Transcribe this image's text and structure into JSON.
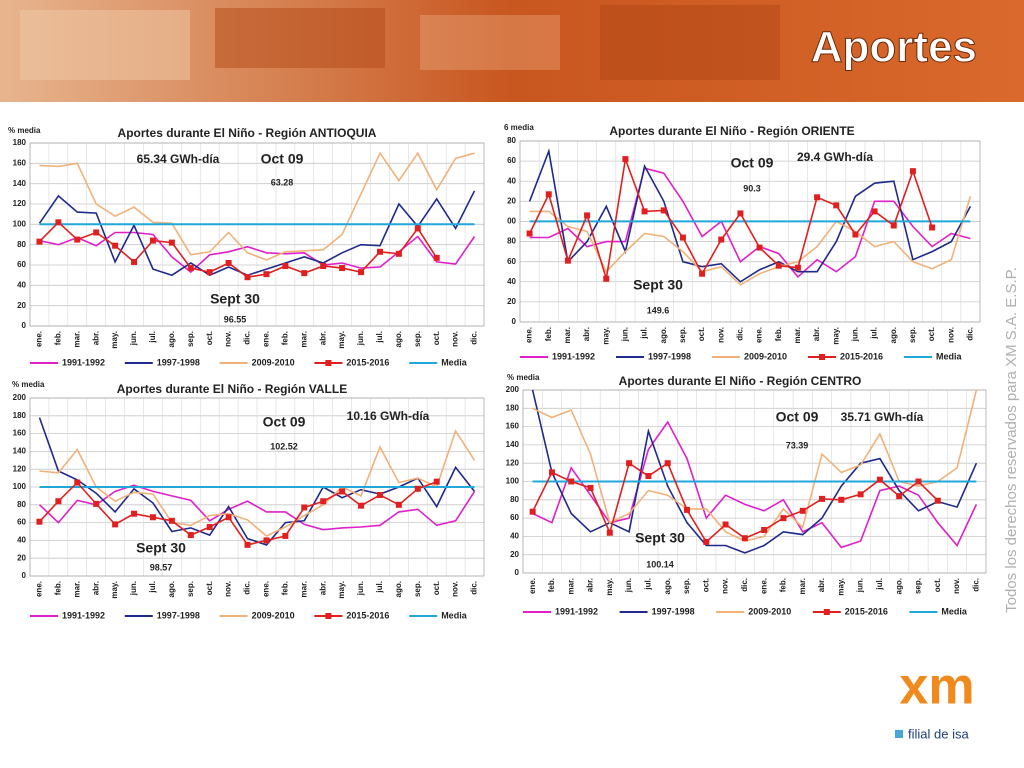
{
  "header": {
    "title": "Aportes"
  },
  "side_note": "Todos los derechos reservados para XM S.A. E.S.P.",
  "logo": {
    "mark": "xm",
    "tagline": "filial de isa"
  },
  "chart_data": [
    {
      "type": "line",
      "title": "Aportes durante El Niño - Región ANTIOQUIA",
      "y_label": "% media",
      "categories": [
        "ene.",
        "feb.",
        "mar.",
        "abr.",
        "may.",
        "jun.",
        "jul.",
        "ago.",
        "sep.",
        "oct.",
        "nov.",
        "dic.",
        "ene.",
        "feb.",
        "mar.",
        "abr.",
        "may.",
        "jun.",
        "jul.",
        "ago.",
        "sep.",
        "oct.",
        "nov.",
        "dic."
      ],
      "ylim": [
        0,
        180
      ],
      "yticks": [
        0,
        20,
        40,
        60,
        80,
        100,
        120,
        140,
        160,
        180
      ],
      "grid": true,
      "annotations": [
        "65.34 GWh-día",
        "Oct 09",
        "63.28",
        "Sept 30",
        "96.55"
      ],
      "series": [
        {
          "name": "1991-1992",
          "color": "#e020c8",
          "values": [
            84,
            80,
            87,
            79,
            92,
            92,
            90,
            68,
            53,
            70,
            73,
            78,
            72,
            71,
            72,
            60,
            62,
            57,
            58,
            73,
            88,
            63,
            61,
            88
          ]
        },
        {
          "name": "1997-1998",
          "color": "#1f2a8a",
          "values": [
            101,
            128,
            112,
            111,
            63,
            99,
            56,
            50,
            62,
            50,
            58,
            50,
            56,
            62,
            68,
            62,
            72,
            80,
            79,
            120,
            98,
            125,
            96,
            133
          ]
        },
        {
          "name": "2009-2010",
          "color": "#f0b27a",
          "values": [
            158,
            157,
            160,
            120,
            108,
            117,
            102,
            101,
            70,
            73,
            92,
            72,
            65,
            73,
            74,
            75,
            90,
            130,
            170,
            143,
            170,
            134,
            165,
            170
          ]
        },
        {
          "name": "2015-2016",
          "color": "#e02020",
          "marker": "square",
          "values": [
            83,
            102,
            85,
            92,
            79,
            63,
            84,
            82,
            57,
            53,
            62,
            48,
            51,
            59,
            52,
            59,
            57,
            53,
            73,
            71,
            96,
            67,
            null,
            null
          ]
        },
        {
          "name": "Media",
          "color": "#1fa8d9",
          "values": [
            100,
            100,
            100,
            100,
            100,
            100,
            100,
            100,
            100,
            100,
            100,
            100,
            100,
            100,
            100,
            100,
            100,
            100,
            100,
            100,
            100,
            100,
            100,
            100
          ]
        }
      ]
    },
    {
      "type": "line",
      "title": "Aportes durante El Niño - Región ORIENTE",
      "y_label": "6 media",
      "categories": [
        "ene.",
        "feb.",
        "mar.",
        "abr.",
        "may.",
        "jun.",
        "jul.",
        "ago.",
        "sep.",
        "oct.",
        "nov.",
        "dic.",
        "ene.",
        "feb.",
        "mar.",
        "abr.",
        "may.",
        "jun.",
        "jul.",
        "ago.",
        "sep.",
        "oct.",
        "nov.",
        "dic."
      ],
      "ylim": [
        0,
        180
      ],
      "yticks": [
        0,
        {
          "value": 20,
          "label": "20"
        },
        {
          "value": 40,
          "label": "40"
        },
        {
          "value": 60,
          "label": "60"
        },
        {
          "value": 80,
          "label": "80"
        },
        {
          "value": 100,
          "label": "00"
        },
        {
          "value": 120,
          "label": "20"
        },
        {
          "value": 140,
          "label": "40"
        },
        {
          "value": 160,
          "label": "60"
        },
        {
          "value": 180,
          "label": "80"
        }
      ],
      "grid": true,
      "annotations": [
        "29.4 GWh-día",
        "Oct 09",
        "90.3",
        "Sept 30",
        "149.6"
      ],
      "series": [
        {
          "name": "1991-1992",
          "color": "#e020c8",
          "values": [
            84,
            84,
            93,
            75,
            80,
            80,
            153,
            148,
            120,
            85,
            100,
            60,
            75,
            68,
            45,
            62,
            50,
            65,
            120,
            120,
            95,
            75,
            88,
            83
          ]
        },
        {
          "name": "1997-1998",
          "color": "#1f2a8a",
          "values": [
            120,
            170,
            60,
            80,
            115,
            70,
            155,
            120,
            60,
            55,
            58,
            40,
            52,
            60,
            50,
            50,
            80,
            125,
            138,
            140,
            62,
            70,
            80,
            115
          ]
        },
        {
          "name": "2009-2010",
          "color": "#f0b27a",
          "values": [
            110,
            110,
            95,
            90,
            50,
            70,
            88,
            85,
            70,
            50,
            55,
            37,
            48,
            55,
            60,
            75,
            100,
            90,
            75,
            80,
            60,
            53,
            62,
            125
          ]
        },
        {
          "name": "2015-2016",
          "color": "#e02020",
          "marker": "square",
          "values": [
            88,
            127,
            61,
            106,
            43,
            162,
            110,
            111,
            84,
            48,
            82,
            108,
            74,
            56,
            54,
            124,
            116,
            87,
            110,
            96,
            150,
            94,
            null,
            null
          ]
        },
        {
          "name": "Media",
          "color": "#1fa8d9",
          "values": [
            100,
            100,
            100,
            100,
            100,
            100,
            100,
            100,
            100,
            100,
            100,
            100,
            100,
            100,
            100,
            100,
            100,
            100,
            100,
            100,
            100,
            100,
            100,
            100
          ]
        }
      ]
    },
    {
      "type": "line",
      "title": "Aportes durante El Niño - Región VALLE",
      "y_label": "% media",
      "categories": [
        "ene.",
        "feb.",
        "mar.",
        "abr.",
        "may.",
        "jun.",
        "jul.",
        "ago.",
        "sep.",
        "oct.",
        "nov.",
        "dic.",
        "ene.",
        "feb.",
        "mar.",
        "abr.",
        "may.",
        "jun.",
        "jul.",
        "ago.",
        "sep.",
        "oct.",
        "nov.",
        "dic."
      ],
      "ylim": [
        0,
        200
      ],
      "yticks": [
        0,
        20,
        40,
        60,
        80,
        100,
        120,
        140,
        160,
        180,
        200
      ],
      "grid": true,
      "annotations": [
        "10.16 GWh-día",
        "Oct 09",
        "102.52",
        "Sept 30",
        "98.57"
      ],
      "series": [
        {
          "name": "1991-1992",
          "color": "#e020c8",
          "values": [
            80,
            60,
            85,
            80,
            95,
            102,
            95,
            90,
            85,
            62,
            75,
            84,
            72,
            72,
            58,
            52,
            54,
            55,
            57,
            72,
            75,
            57,
            62,
            95
          ]
        },
        {
          "name": "1997-1998",
          "color": "#1f2a8a",
          "values": [
            178,
            118,
            108,
            93,
            72,
            98,
            82,
            50,
            54,
            46,
            78,
            42,
            35,
            60,
            62,
            100,
            88,
            97,
            92,
            100,
            110,
            78,
            122,
            95
          ]
        },
        {
          "name": "2009-2010",
          "color": "#f0b27a",
          "values": [
            118,
            116,
            142,
            100,
            84,
            94,
            92,
            60,
            57,
            68,
            70,
            63,
            45,
            55,
            68,
            80,
            100,
            90,
            145,
            105,
            110,
            100,
            163,
            130
          ]
        },
        {
          "name": "2015-2016",
          "color": "#e02020",
          "marker": "square",
          "values": [
            61,
            84,
            105,
            81,
            58,
            70,
            66,
            62,
            46,
            55,
            66,
            35,
            40,
            45,
            77,
            84,
            95,
            79,
            91,
            80,
            98,
            106,
            null,
            null
          ]
        },
        {
          "name": "Media",
          "color": "#1fa8d9",
          "values": [
            100,
            100,
            100,
            100,
            100,
            100,
            100,
            100,
            100,
            100,
            100,
            100,
            100,
            100,
            100,
            100,
            100,
            100,
            100,
            100,
            100,
            100,
            100,
            100
          ]
        }
      ]
    },
    {
      "type": "line",
      "title": "Aportes durante El Niño - Región CENTRO",
      "y_label": "% media",
      "categories": [
        "ene.",
        "feb.",
        "mar.",
        "abr.",
        "may.",
        "jun.",
        "jul.",
        "ago.",
        "sep.",
        "oct.",
        "nov.",
        "dic.",
        "ene.",
        "feb.",
        "mar.",
        "abr.",
        "may.",
        "jun.",
        "jul.",
        "ago.",
        "sep.",
        "oct.",
        "nov.",
        "dic."
      ],
      "ylim": [
        0,
        200
      ],
      "yticks": [
        0,
        20,
        40,
        60,
        80,
        100,
        120,
        140,
        160,
        180,
        200
      ],
      "grid": true,
      "annotations": [
        "35.71 GWh-día",
        "Oct 09",
        "73.39",
        "Sept 30",
        "100.14"
      ],
      "series": [
        {
          "name": "1991-1992",
          "color": "#e020c8",
          "values": [
            65,
            55,
            115,
            85,
            55,
            60,
            135,
            165,
            125,
            60,
            85,
            75,
            68,
            80,
            45,
            55,
            28,
            35,
            90,
            95,
            85,
            55,
            30,
            75
          ]
        },
        {
          "name": "1997-1998",
          "color": "#1f2a8a",
          "values": [
            200,
            110,
            65,
            45,
            55,
            45,
            155,
            95,
            55,
            30,
            30,
            22,
            30,
            45,
            42,
            60,
            95,
            120,
            125,
            90,
            68,
            78,
            72,
            120
          ]
        },
        {
          "name": "2009-2010",
          "color": "#f0b27a",
          "values": [
            180,
            170,
            178,
            130,
            55,
            65,
            90,
            85,
            70,
            70,
            45,
            35,
            40,
            70,
            50,
            130,
            110,
            118,
            152,
            100,
            95,
            100,
            115,
            200
          ]
        },
        {
          "name": "2015-2016",
          "color": "#e02020",
          "marker": "square",
          "values": [
            67,
            110,
            100,
            93,
            44,
            120,
            106,
            120,
            69,
            34,
            53,
            38,
            47,
            60,
            68,
            81,
            80,
            86,
            102,
            84,
            100,
            79,
            null,
            null
          ]
        },
        {
          "name": "Media",
          "color": "#1fa8d9",
          "values": [
            100,
            100,
            100,
            100,
            100,
            100,
            100,
            100,
            100,
            100,
            100,
            100,
            100,
            100,
            100,
            100,
            100,
            100,
            100,
            100,
            100,
            100,
            100,
            100
          ]
        }
      ]
    }
  ]
}
